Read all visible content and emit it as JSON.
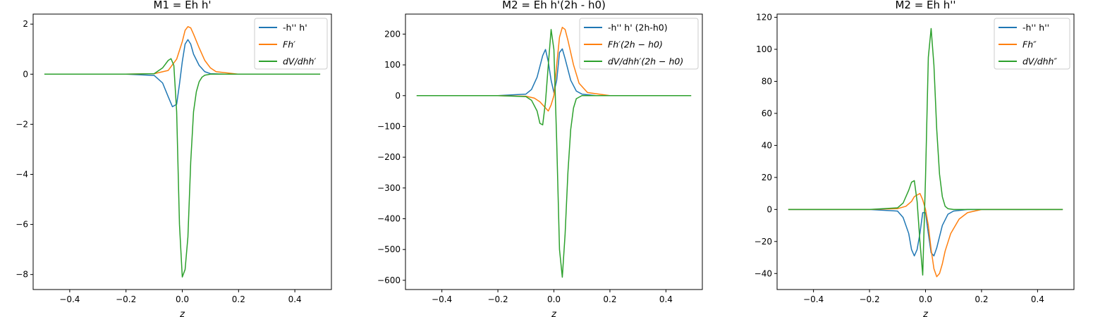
{
  "chart_data": [
    {
      "type": "line",
      "title": "M1 = Eh h'",
      "xlabel": "z",
      "ylabel": "",
      "xlim": [
        -0.53,
        0.53
      ],
      "ylim": [
        -8.6,
        2.4
      ],
      "xticks": [
        -0.4,
        -0.2,
        0.0,
        0.2,
        0.4
      ],
      "xtick_labels": [
        "−0.4",
        "−0.2",
        "0.0",
        "0.2",
        "0.4"
      ],
      "yticks": [
        -8,
        -6,
        -4,
        -2,
        0,
        2
      ],
      "ytick_labels": [
        "−8",
        "−6",
        "−4",
        "−2",
        "0",
        "2"
      ],
      "grid": false,
      "legend_position": "top-right",
      "series": [
        {
          "name": "-h'' h'",
          "color": "#1f77b4",
          "x": [
            -0.49,
            -0.2,
            -0.1,
            -0.07,
            -0.05,
            -0.035,
            -0.02,
            -0.01,
            0,
            0.01,
            0.02,
            0.03,
            0.04,
            0.06,
            0.08,
            0.1,
            0.15,
            0.49
          ],
          "y": [
            0,
            0,
            -0.05,
            -0.35,
            -0.9,
            -1.3,
            -1.2,
            -0.4,
            0.5,
            1.2,
            1.38,
            1.2,
            0.8,
            0.35,
            0.1,
            0.02,
            0,
            0
          ]
        },
        {
          "name": "Fh′",
          "color": "#ff7f0e",
          "x": [
            -0.49,
            -0.2,
            -0.1,
            -0.05,
            -0.02,
            0,
            0.01,
            0.02,
            0.03,
            0.04,
            0.06,
            0.08,
            0.1,
            0.12,
            0.2,
            0.49
          ],
          "y": [
            0,
            0,
            0.02,
            0.15,
            0.6,
            1.3,
            1.75,
            1.9,
            1.85,
            1.6,
            1.05,
            0.55,
            0.25,
            0.1,
            0,
            0
          ]
        },
        {
          "name": "dV/dhh′",
          "color": "#2ca02c",
          "x": [
            -0.49,
            -0.2,
            -0.1,
            -0.07,
            -0.05,
            -0.04,
            -0.03,
            -0.02,
            -0.01,
            0,
            0.01,
            0.02,
            0.03,
            0.04,
            0.05,
            0.06,
            0.07,
            0.08,
            0.1,
            0.49
          ],
          "y": [
            0,
            0,
            0.02,
            0.25,
            0.55,
            0.62,
            0.35,
            -1.5,
            -6,
            -8.1,
            -7.8,
            -6.5,
            -3.5,
            -1.5,
            -0.7,
            -0.3,
            -0.12,
            -0.04,
            0,
            0
          ]
        }
      ]
    },
    {
      "type": "line",
      "title": "M2 = Eh h'(2h - h0)",
      "xlabel": "z",
      "ylabel": "",
      "xlim": [
        -0.53,
        0.53
      ],
      "ylim": [
        -630,
        265
      ],
      "xticks": [
        -0.4,
        -0.2,
        0.0,
        0.2,
        0.4
      ],
      "xtick_labels": [
        "−0.4",
        "−0.2",
        "0.0",
        "0.2",
        "0.4"
      ],
      "yticks": [
        -600,
        -500,
        -400,
        -300,
        -200,
        -100,
        0,
        100,
        200
      ],
      "ytick_labels": [
        "−600",
        "−500",
        "−400",
        "−300",
        "−200",
        "−100",
        "0",
        "100",
        "200"
      ],
      "grid": false,
      "legend_position": "top-right",
      "series": [
        {
          "name": "-h'' h' (2h-h0)",
          "color": "#1f77b4",
          "x": [
            -0.49,
            -0.2,
            -0.1,
            -0.08,
            -0.06,
            -0.04,
            -0.03,
            -0.02,
            -0.01,
            0,
            0.01,
            0.02,
            0.03,
            0.04,
            0.06,
            0.08,
            0.1,
            0.15,
            0.49
          ],
          "y": [
            0,
            0,
            5,
            20,
            60,
            130,
            150,
            110,
            50,
            10,
            50,
            140,
            152,
            120,
            50,
            15,
            5,
            0,
            0
          ]
        },
        {
          "name": "Fh′(2h − h0)",
          "color": "#ff7f0e",
          "x": [
            -0.49,
            -0.2,
            -0.1,
            -0.07,
            -0.05,
            -0.03,
            -0.02,
            -0.01,
            0,
            0.01,
            0.02,
            0.03,
            0.04,
            0.05,
            0.07,
            0.09,
            0.12,
            0.2,
            0.49
          ],
          "y": [
            0,
            0,
            -2,
            -8,
            -20,
            -40,
            -50,
            -30,
            0,
            100,
            190,
            222,
            215,
            180,
            100,
            40,
            10,
            0,
            0
          ]
        },
        {
          "name": "dV/dhh′(2h − h0)",
          "color": "#2ca02c",
          "x": [
            -0.49,
            -0.2,
            -0.1,
            -0.08,
            -0.06,
            -0.05,
            -0.04,
            -0.03,
            -0.02,
            -0.01,
            0,
            0.01,
            0.02,
            0.03,
            0.04,
            0.05,
            0.06,
            0.07,
            0.08,
            0.1,
            0.49
          ],
          "y": [
            0,
            0,
            -3,
            -15,
            -50,
            -90,
            -95,
            -20,
            100,
            215,
            150,
            -150,
            -500,
            -590,
            -450,
            -250,
            -110,
            -40,
            -10,
            0,
            0
          ]
        }
      ]
    },
    {
      "type": "line",
      "title": "M2 = Eh h''",
      "xlabel": "z",
      "ylabel": "",
      "xlim": [
        -0.53,
        0.53
      ],
      "ylim": [
        -50,
        122
      ],
      "xticks": [
        -0.4,
        -0.2,
        0.0,
        0.2,
        0.4
      ],
      "xtick_labels": [
        "−0.4",
        "−0.2",
        "0.0",
        "0.2",
        "0.4"
      ],
      "yticks": [
        -40,
        -20,
        0,
        20,
        40,
        60,
        80,
        100,
        120
      ],
      "ytick_labels": [
        "−40",
        "−20",
        "0",
        "20",
        "40",
        "60",
        "80",
        "100",
        "120"
      ],
      "grid": false,
      "legend_position": "top-right",
      "series": [
        {
          "name": "-h'' h''",
          "color": "#1f77b4",
          "x": [
            -0.49,
            -0.2,
            -0.1,
            -0.08,
            -0.06,
            -0.05,
            -0.04,
            -0.03,
            -0.02,
            -0.01,
            0,
            0.01,
            0.02,
            0.03,
            0.04,
            0.05,
            0.06,
            0.08,
            0.1,
            0.15,
            0.49
          ],
          "y": [
            0,
            0,
            -1,
            -5,
            -15,
            -25,
            -29,
            -25,
            -15,
            -2,
            -2,
            -15,
            -27,
            -29,
            -24,
            -17,
            -10,
            -3,
            -1,
            0,
            0
          ]
        },
        {
          "name": "Fh″",
          "color": "#ff7f0e",
          "x": [
            -0.49,
            -0.2,
            -0.1,
            -0.07,
            -0.05,
            -0.04,
            -0.03,
            -0.02,
            -0.01,
            0,
            0.01,
            0.02,
            0.03,
            0.04,
            0.05,
            0.06,
            0.07,
            0.09,
            0.12,
            0.15,
            0.2,
            0.49
          ],
          "y": [
            0,
            0,
            0.5,
            2,
            5,
            8,
            9,
            10,
            6,
            0,
            -10,
            -25,
            -37,
            -42,
            -40,
            -34,
            -26,
            -15,
            -6,
            -2,
            0,
            0
          ]
        },
        {
          "name": "dV/dhh″",
          "color": "#2ca02c",
          "x": [
            -0.49,
            -0.2,
            -0.1,
            -0.08,
            -0.06,
            -0.05,
            -0.04,
            -0.03,
            -0.02,
            -0.01,
            0,
            0.01,
            0.02,
            0.03,
            0.04,
            0.05,
            0.06,
            0.07,
            0.08,
            0.1,
            0.49
          ],
          "y": [
            0,
            0,
            1,
            4,
            12,
            17,
            18,
            5,
            -20,
            -41,
            20,
            95,
            113,
            90,
            50,
            22,
            8,
            2,
            0.5,
            0,
            0
          ]
        }
      ]
    }
  ]
}
